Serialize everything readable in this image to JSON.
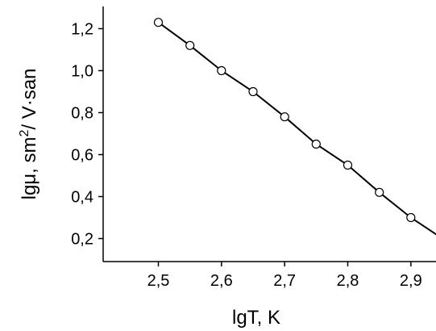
{
  "chart_data": {
    "type": "line",
    "title": "",
    "xlabel": "lgT, K",
    "ylabel": {
      "prefix": "lgμ, sm",
      "superscript": "2",
      "suffix": "/ V·san"
    },
    "xlim": [
      2.45,
      2.97
    ],
    "ylim": [
      0.1,
      1.32
    ],
    "x_ticks": [
      2.5,
      2.6,
      2.7,
      2.8,
      2.9
    ],
    "x_tick_labels": [
      "2,5",
      "2,6",
      "2,7",
      "2,8",
      "2,9"
    ],
    "y_ticks": [
      0.2,
      0.4,
      0.6,
      0.8,
      1.0,
      1.2
    ],
    "y_tick_labels": [
      "0,2",
      "0,4",
      "0,6",
      "0,8",
      "1,0",
      "1,2"
    ],
    "grid": false,
    "series": [
      {
        "color": "#000000",
        "marker": "open-circle",
        "x": [
          2.5,
          2.55,
          2.6,
          2.65,
          2.7,
          2.75,
          2.8,
          2.85,
          2.9,
          2.95
        ],
        "y": [
          1.23,
          1.12,
          1.0,
          0.9,
          0.78,
          0.65,
          0.55,
          0.42,
          0.3,
          0.2
        ]
      }
    ]
  }
}
